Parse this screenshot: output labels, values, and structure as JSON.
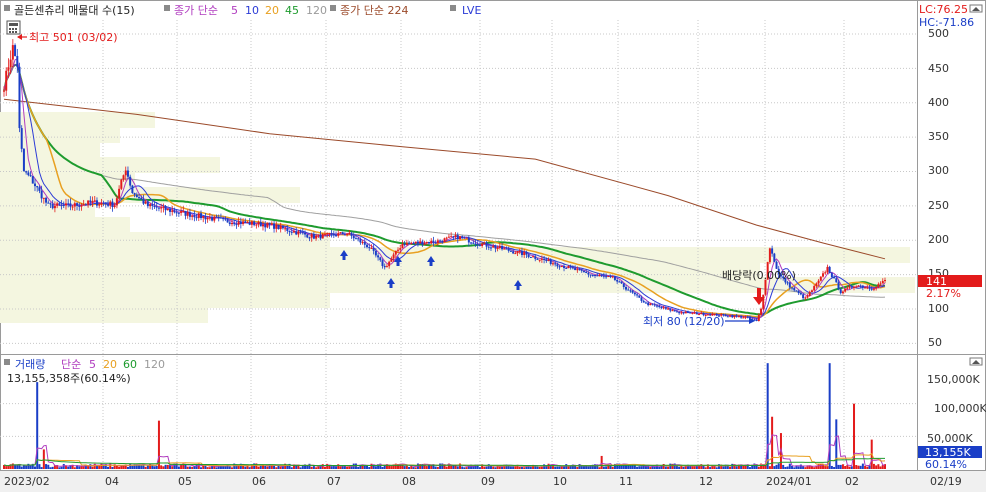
{
  "colors": {
    "up": "#e31b1b",
    "down": "#1a3ec7",
    "ma5": "#b03cbf",
    "ma10": "#2b3bd6",
    "ma20": "#e8a020",
    "ma45": "#1e9b2e",
    "ma120": "#a0a0a0",
    "ma224": "#9b4a2a",
    "grid": "#c8c8c8",
    "volBox": "#f4f6e0",
    "accentBox": "#e31b1b",
    "accentBlue": "#1a3ec7"
  },
  "header": {
    "title": "골든센츄리 매물대 수(15)",
    "ma_label": "종가 단순",
    "ma_periods": [
      "5",
      "10",
      "20",
      "45",
      "120"
    ],
    "ma224_label": "종가 단순 224",
    "lve_label": "LVE",
    "lc": "LC:76.25",
    "hc": "HC:-71.86"
  },
  "price_axis": {
    "ticks": [
      "500",
      "450",
      "400",
      "350",
      "300",
      "250",
      "200",
      "150",
      "100",
      "50"
    ],
    "current_value": "141",
    "current_change": "2.17%"
  },
  "annotations": {
    "high": "최고 501 (03/02)",
    "low": "최저 80 (12/20)",
    "dividend": "배당락(0.00%)"
  },
  "volume": {
    "legend_title": "거래량",
    "legend_ma": "단순",
    "legend_periods": [
      "5",
      "20",
      "60",
      "120"
    ],
    "info": "13,155,358주(60.14%)",
    "ticks": [
      "150,000K",
      "100,000K",
      "50,000K"
    ],
    "current_value": "13,155K",
    "current_pct": "60.14%"
  },
  "x_axis": {
    "labels": [
      "2023/02",
      "04",
      "05",
      "06",
      "07",
      "08",
      "09",
      "10",
      "11",
      "12",
      "2024/01",
      "02",
      "02/19"
    ]
  },
  "chart_data": {
    "type": "candlestick",
    "title": "골든센츄리",
    "ylim": [
      25,
      525
    ],
    "volume_ylim": [
      0,
      180000
    ],
    "x_labels": [
      "2023/02",
      "04",
      "05",
      "06",
      "07",
      "08",
      "09",
      "10",
      "11",
      "12",
      "2024/01",
      "02",
      "02/19"
    ],
    "close_series": [
      {
        "t": 0,
        "v": 425
      },
      {
        "t": 2,
        "v": 455
      },
      {
        "t": 4,
        "v": 480
      },
      {
        "t": 6,
        "v": 455
      },
      {
        "t": 7,
        "v": 360
      },
      {
        "t": 9,
        "v": 300
      },
      {
        "t": 12,
        "v": 290
      },
      {
        "t": 16,
        "v": 270
      },
      {
        "t": 20,
        "v": 250
      },
      {
        "t": 30,
        "v": 250
      },
      {
        "t": 40,
        "v": 255
      },
      {
        "t": 50,
        "v": 252
      },
      {
        "t": 55,
        "v": 305
      },
      {
        "t": 58,
        "v": 270
      },
      {
        "t": 65,
        "v": 250
      },
      {
        "t": 80,
        "v": 240
      },
      {
        "t": 100,
        "v": 228
      },
      {
        "t": 120,
        "v": 222
      },
      {
        "t": 140,
        "v": 205
      },
      {
        "t": 155,
        "v": 210
      },
      {
        "t": 165,
        "v": 190
      },
      {
        "t": 172,
        "v": 160
      },
      {
        "t": 180,
        "v": 195
      },
      {
        "t": 195,
        "v": 198
      },
      {
        "t": 205,
        "v": 205
      },
      {
        "t": 215,
        "v": 195
      },
      {
        "t": 235,
        "v": 180
      },
      {
        "t": 250,
        "v": 165
      },
      {
        "t": 265,
        "v": 150
      },
      {
        "t": 275,
        "v": 145
      },
      {
        "t": 290,
        "v": 108
      },
      {
        "t": 305,
        "v": 95
      },
      {
        "t": 320,
        "v": 92
      },
      {
        "t": 335,
        "v": 88
      },
      {
        "t": 340,
        "v": 82
      },
      {
        "t": 342,
        "v": 100
      },
      {
        "t": 346,
        "v": 190
      },
      {
        "t": 350,
        "v": 150
      },
      {
        "t": 356,
        "v": 130
      },
      {
        "t": 362,
        "v": 115
      },
      {
        "t": 368,
        "v": 140
      },
      {
        "t": 372,
        "v": 160
      },
      {
        "t": 378,
        "v": 125
      },
      {
        "t": 385,
        "v": 135
      },
      {
        "t": 392,
        "v": 130
      },
      {
        "t": 398,
        "v": 141
      }
    ],
    "series": [
      {
        "name": "5",
        "values": "derived from close"
      },
      {
        "name": "10",
        "values": "derived from close"
      },
      {
        "name": "20",
        "values": "derived from close"
      },
      {
        "name": "45",
        "values": "derived from close"
      },
      {
        "name": "120",
        "values": "derived from close"
      },
      {
        "name": "224",
        "values": [
          {
            "t": 0,
            "v": 405
          },
          {
            "t": 60,
            "v": 383
          },
          {
            "t": 120,
            "v": 355
          },
          {
            "t": 180,
            "v": 336
          },
          {
            "t": 240,
            "v": 318
          },
          {
            "t": 300,
            "v": 265
          },
          {
            "t": 340,
            "v": 222
          },
          {
            "t": 370,
            "v": 196
          },
          {
            "t": 398,
            "v": 173
          }
        ]
      }
    ],
    "volume_spikes": [
      {
        "t": 15,
        "v": 133000,
        "dir": "down"
      },
      {
        "t": 18,
        "v": 30000,
        "dir": "up"
      },
      {
        "t": 70,
        "v": 74000,
        "dir": "up"
      },
      {
        "t": 270,
        "v": 20000,
        "dir": "up"
      },
      {
        "t": 345,
        "v": 162000,
        "dir": "down"
      },
      {
        "t": 347,
        "v": 80000,
        "dir": "up"
      },
      {
        "t": 351,
        "v": 55000,
        "dir": "up"
      },
      {
        "t": 373,
        "v": 162000,
        "dir": "down"
      },
      {
        "t": 376,
        "v": 76000,
        "dir": "down"
      },
      {
        "t": 384,
        "v": 100000,
        "dir": "up"
      },
      {
        "t": 392,
        "v": 45000,
        "dir": "up"
      }
    ]
  }
}
